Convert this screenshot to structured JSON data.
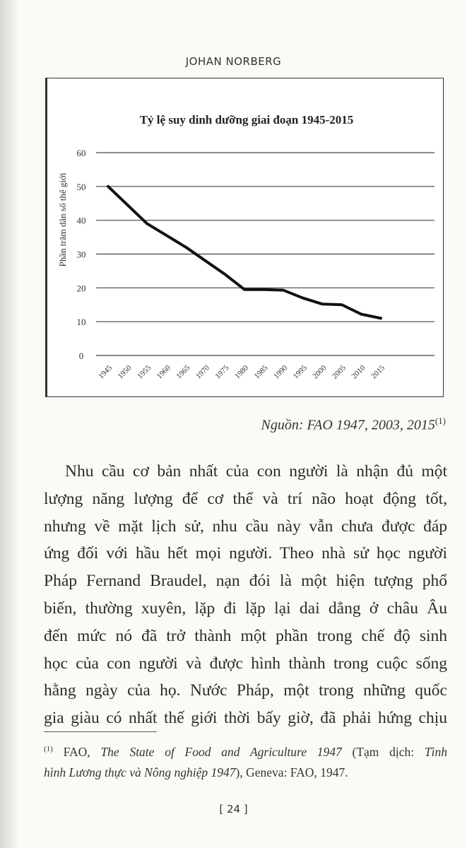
{
  "header": {
    "author": "JOHAN NORBERG"
  },
  "chart_data": {
    "type": "line",
    "title": "Tỷ lệ suy dinh dưỡng giai đoạn 1945-2015",
    "xlabel": "",
    "ylabel": "Phần trăm dân số thế giới",
    "categories": [
      "1945",
      "1950",
      "1955",
      "1960",
      "1965",
      "1970",
      "1975",
      "1980",
      "1985",
      "1990",
      "1995",
      "2000",
      "2005",
      "2010",
      "2015"
    ],
    "values": [
      50,
      44.5,
      39,
      35.5,
      32,
      28,
      24,
      19.5,
      19.5,
      19.3,
      17,
      15.2,
      15,
      12.2,
      11
    ],
    "ylim": [
      0,
      60
    ],
    "yticks": [
      "0",
      "10",
      "20",
      "30",
      "40",
      "50",
      "60"
    ],
    "grid": true,
    "line_color": "#111111"
  },
  "source": {
    "text": "Nguồn: FAO 1947, 2003, 2015",
    "note_ref": "(1)"
  },
  "body": {
    "lines": [
      "Nhu cầu cơ bản nhất của con người là nhận đủ một",
      "lượng năng lượng để cơ thể và trí não hoạt động tốt,",
      "nhưng về mặt lịch sử, nhu cầu này vẫn chưa được đáp",
      "ứng đối với hầu hết mọi người. Theo nhà sử học người",
      "Pháp Fernand Braudel, nạn đói là một hiện tượng phổ",
      "biến, thường xuyên, lặp đi lặp lại dai dẳng ở châu Âu",
      "đến mức nó đã trở thành một phần trong chế độ sinh",
      "học của con người và được hình thành trong cuộc sống",
      "hằng ngày của họ. Nước Pháp, một trong những quốc",
      "gia giàu có nhất thế giới thời bấy giờ, đã phải hứng chịu"
    ]
  },
  "footnote": {
    "marker": "(1)",
    "p1": "FAO, ",
    "title": "The State of Food and Agriculture 1947",
    "p2": " (Tạm dịch: ",
    "title_vi_a": "Tình",
    "title_vi_b": "hình Lương thực và Nông nghiệp 1947",
    "p3": "), Geneva: FAO, 1947."
  },
  "page_number": "[ 24 ]"
}
